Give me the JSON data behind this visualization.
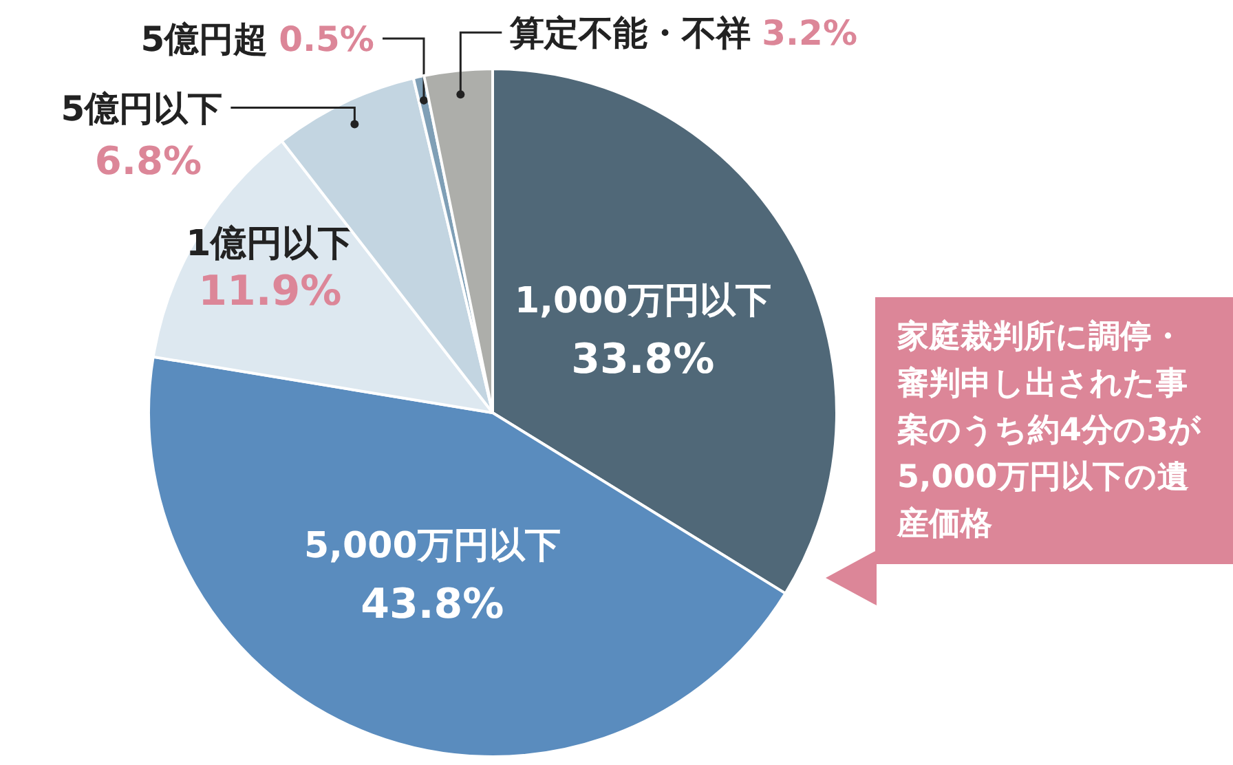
{
  "chart_data": {
    "type": "pie",
    "categories": [
      "1,000万円以下",
      "5,000万円以下",
      "1億円以下",
      "5億円以下",
      "5億円超",
      "算定不能・不祥"
    ],
    "values": [
      33.8,
      43.8,
      11.9,
      6.8,
      0.5,
      3.2
    ],
    "colors": [
      "#506878",
      "#5a8cbe",
      "#dde8f0",
      "#c3d5e1",
      "#7f9fb6",
      "#adaeaa"
    ],
    "value_labels": [
      "33.8%",
      "43.8%",
      "11.9%",
      "6.8%",
      "0.5%",
      "3.2%"
    ],
    "annotations": [
      "家庭裁判所に調停・審判申し出された事案のうち約4分の3が5,000万円以下の遺産価格"
    ]
  }
}
